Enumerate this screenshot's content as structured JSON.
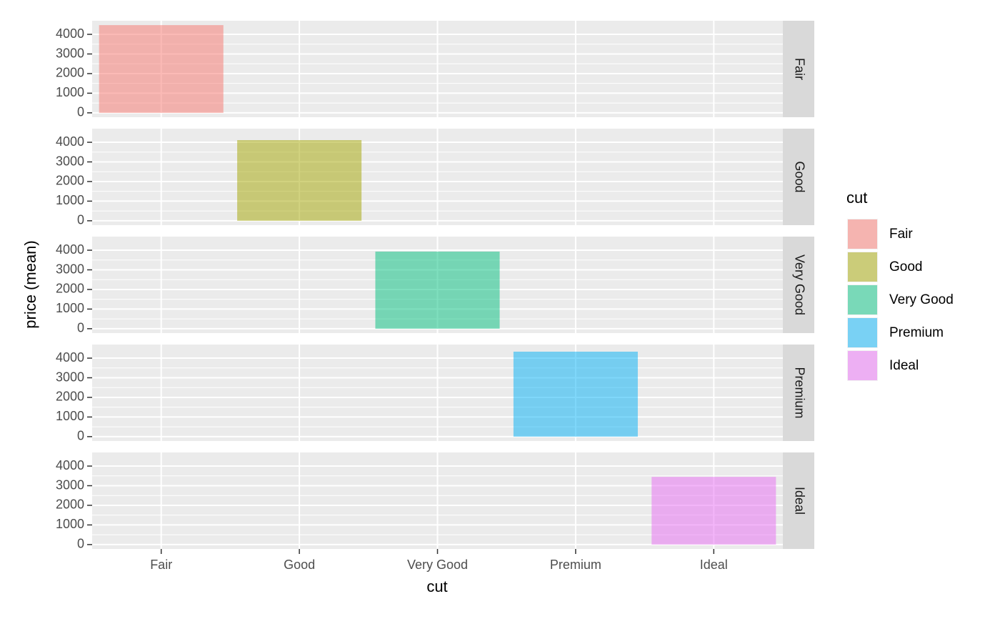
{
  "chart_data": {
    "type": "bar",
    "x_label": "cut",
    "y_label": "price (mean)",
    "legend_title": "cut",
    "categories": [
      "Fair",
      "Good",
      "Very Good",
      "Premium",
      "Ideal"
    ],
    "values": [
      4470,
      4110,
      3930,
      4330,
      3450
    ],
    "colors": [
      "#F8766D",
      "#A3A500",
      "#00BF7D",
      "#00B0F6",
      "#E76BF3"
    ],
    "alpha": 0.5,
    "facet": "row",
    "ylim": [
      -224,
      4694
    ],
    "yticks": [
      0,
      1000,
      2000,
      3000,
      4000
    ],
    "grid": true,
    "legend_position": "right"
  }
}
